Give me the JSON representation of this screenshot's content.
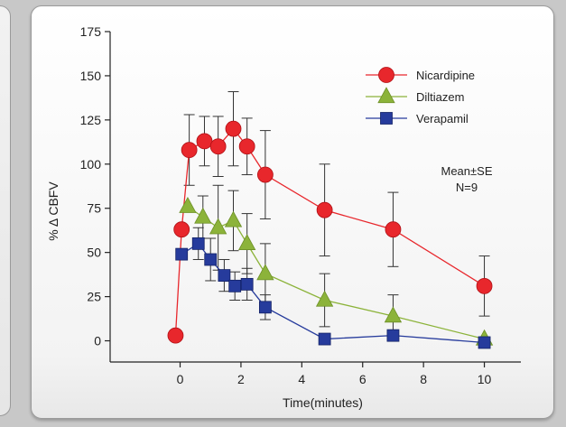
{
  "chart_data": {
    "type": "line",
    "xlabel": "Time(minutes)",
    "ylabel": "% Δ CBFV",
    "xlim": [
      -2.3,
      11.2
    ],
    "ylim": [
      -12,
      175
    ],
    "xticks": [
      0,
      2,
      4,
      6,
      8,
      10
    ],
    "yticks": [
      0,
      25,
      50,
      75,
      100,
      125,
      150,
      175
    ],
    "legend_position": "top-right",
    "annotation": [
      "Mean±SE",
      "N=9"
    ],
    "series": [
      {
        "name": "Nicardipine",
        "color": "#e8272c",
        "marker": "circle",
        "points": [
          {
            "x": -0.15,
            "y": 3
          },
          {
            "x": 0.05,
            "y": 63
          },
          {
            "x": 0.3,
            "y": 108,
            "err": 20
          },
          {
            "x": 0.8,
            "y": 113,
            "err": 14
          },
          {
            "x": 1.25,
            "y": 110,
            "err": 17
          },
          {
            "x": 1.75,
            "y": 120,
            "err": 21
          },
          {
            "x": 2.2,
            "y": 110,
            "err": 16
          },
          {
            "x": 2.8,
            "y": 94,
            "err": 25
          },
          {
            "x": 4.75,
            "y": 74,
            "err": 26
          },
          {
            "x": 7.0,
            "y": 63,
            "err": 21
          },
          {
            "x": 10.0,
            "y": 31,
            "err": 17
          }
        ]
      },
      {
        "name": "Diltiazem",
        "color": "#8cb33a",
        "marker": "triangle",
        "points": [
          {
            "x": 0.25,
            "y": 76
          },
          {
            "x": 0.75,
            "y": 70,
            "err": 12
          },
          {
            "x": 1.25,
            "y": 64,
            "err": 24
          },
          {
            "x": 1.75,
            "y": 68,
            "err": 17
          },
          {
            "x": 2.2,
            "y": 55,
            "err": 17
          },
          {
            "x": 2.8,
            "y": 38,
            "err": 17
          },
          {
            "x": 4.75,
            "y": 23,
            "err": 15
          },
          {
            "x": 7.0,
            "y": 14,
            "err": 12
          },
          {
            "x": 10.0,
            "y": 1
          }
        ]
      },
      {
        "name": "Verapamil",
        "color": "#263b9c",
        "marker": "square",
        "points": [
          {
            "x": 0.05,
            "y": 49
          },
          {
            "x": 0.6,
            "y": 55,
            "err": 9
          },
          {
            "x": 1.0,
            "y": 46,
            "err": 12
          },
          {
            "x": 1.45,
            "y": 37,
            "err": 9
          },
          {
            "x": 1.8,
            "y": 31,
            "err": 8
          },
          {
            "x": 2.2,
            "y": 32,
            "err": 9
          },
          {
            "x": 2.8,
            "y": 19,
            "err": 7
          },
          {
            "x": 4.75,
            "y": 1
          },
          {
            "x": 7.0,
            "y": 3
          },
          {
            "x": 10.0,
            "y": -1
          }
        ]
      }
    ]
  }
}
